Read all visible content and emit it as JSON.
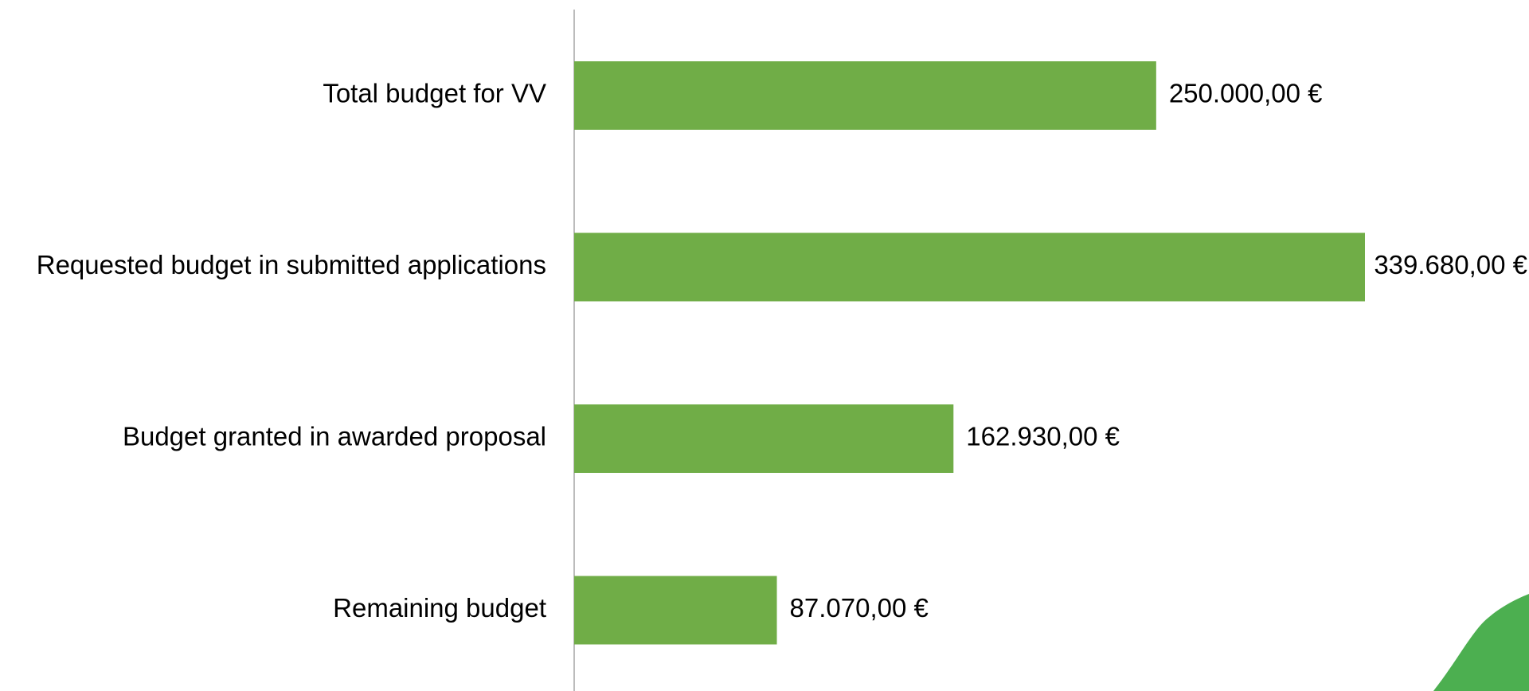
{
  "chart_data": {
    "type": "barh",
    "categories": [
      "Total budget for VV",
      "Requested budget in submitted applications",
      "Budget granted in awarded proposal",
      "Remaining budget"
    ],
    "values": [
      250000,
      339680,
      162930,
      87070
    ],
    "value_labels": [
      "250.000,00 €",
      "339.680,00 €",
      "162.930,00 €",
      "87.070,00 €"
    ],
    "color": "#70ad47"
  }
}
